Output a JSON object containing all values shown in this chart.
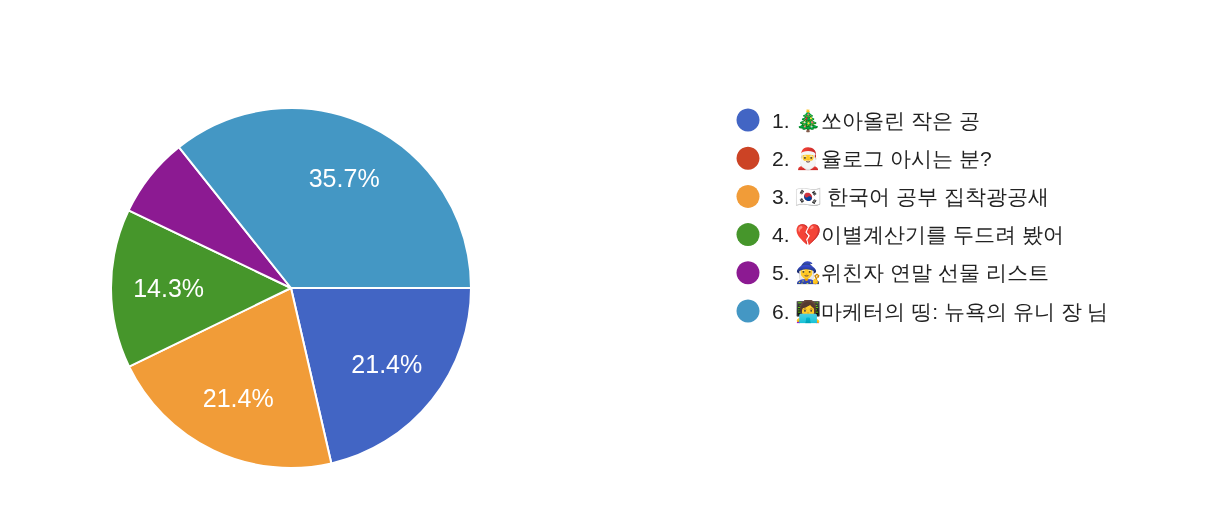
{
  "chart_data": {
    "type": "pie",
    "categories": [
      "1. 🎄쏘아올린 작은 공",
      "2. 🎅율로그 아시는 분?",
      "3. 🇰🇷 한국어 공부 집착광공새",
      "4. 💔이별계산기를 두드려 봤어",
      "5. 🧙‍♀️위친자 연말 선물 리스트",
      "6. 👩‍💻마케터의 띵: 뉴욕의 유니 장 님"
    ],
    "values": [
      21.4,
      0,
      21.4,
      14.3,
      7.2,
      35.7
    ],
    "colors": [
      "#4265c4",
      "#cc4325",
      "#f19c38",
      "#46962b",
      "#8c1a92",
      "#4497c4"
    ],
    "value_labels": [
      "21.4%",
      null,
      "21.4%",
      "14.3%",
      null,
      "35.7%"
    ],
    "legend": "right"
  }
}
